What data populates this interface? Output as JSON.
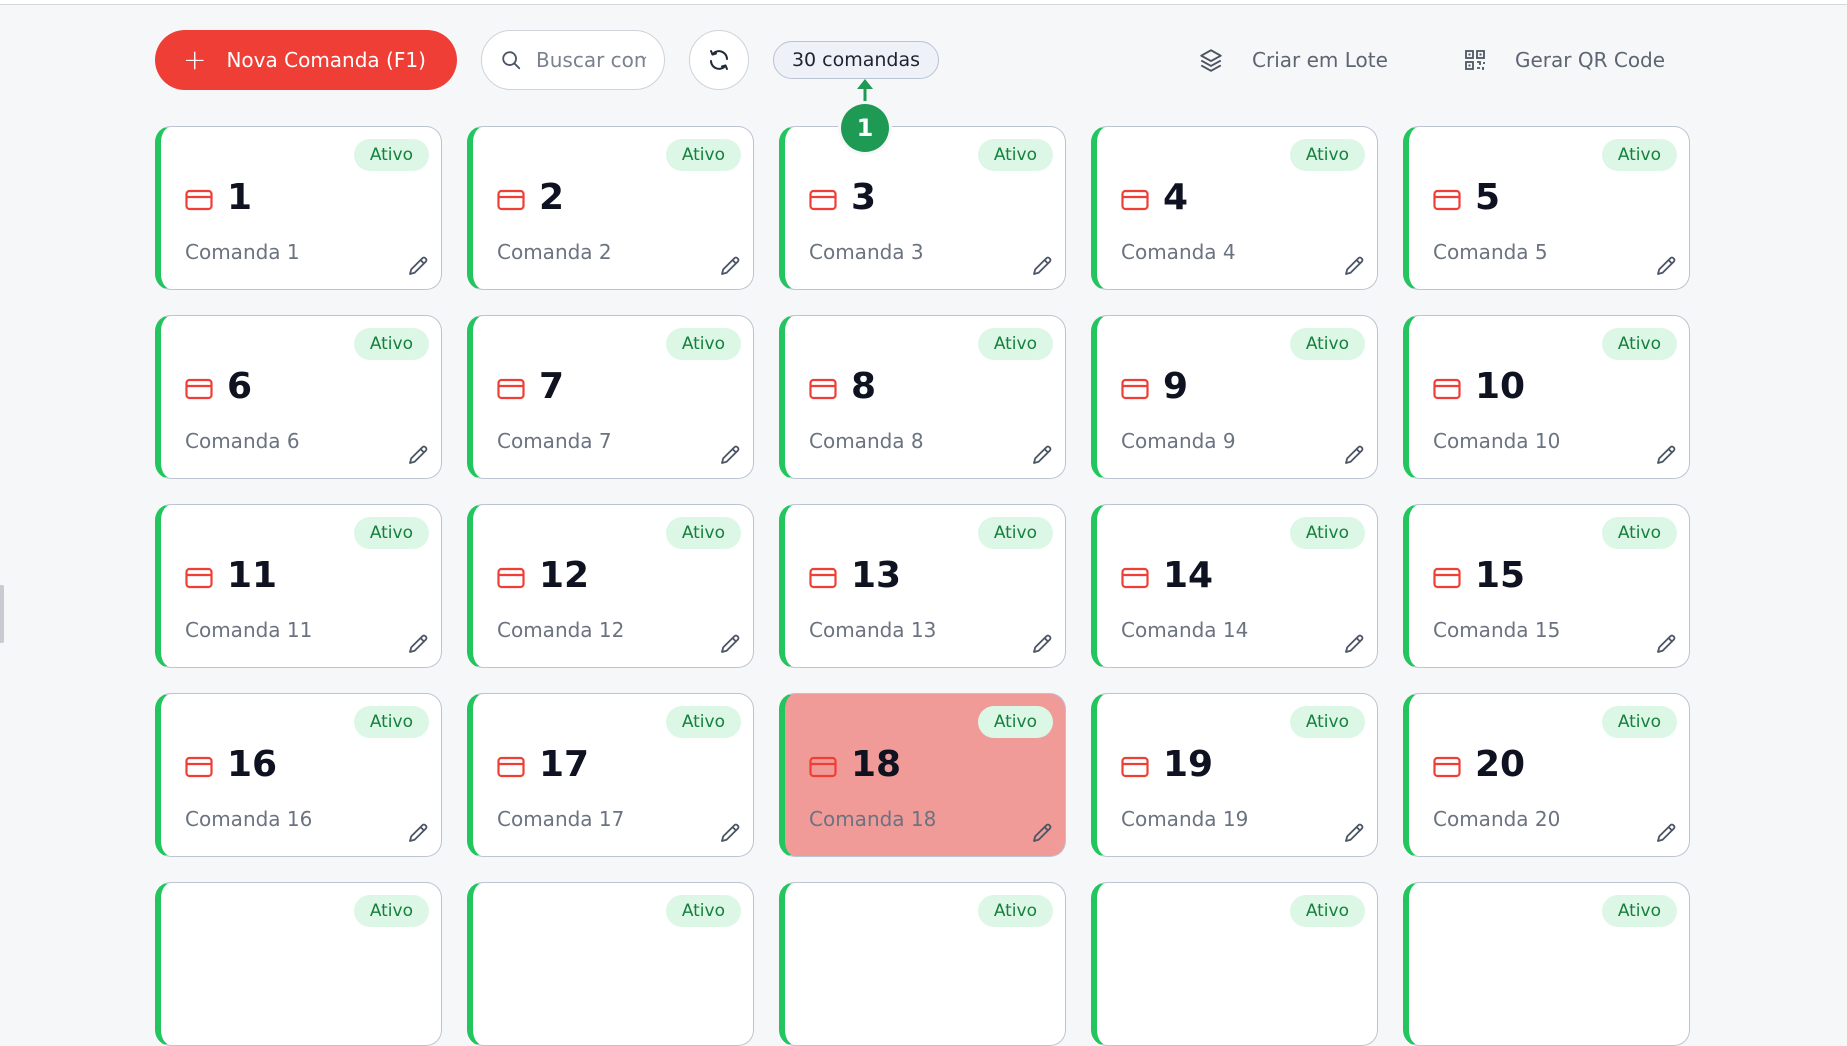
{
  "toolbar": {
    "new_label": "Nova Comanda (F1)",
    "search_placeholder": "Buscar comanda",
    "count_label": "30 comandas",
    "batch_label": "Criar em Lote",
    "qr_label": "Gerar QR Code"
  },
  "tour": {
    "step": "1"
  },
  "colors": {
    "accent": "#ef3e36",
    "active_border": "#22c55e",
    "selected_bg": "#f09b98",
    "tour": "#1f9a55"
  },
  "cards": [
    {
      "number": "1",
      "name": "Comanda 1",
      "status": "Ativo"
    },
    {
      "number": "2",
      "name": "Comanda 2",
      "status": "Ativo"
    },
    {
      "number": "3",
      "name": "Comanda 3",
      "status": "Ativo"
    },
    {
      "number": "4",
      "name": "Comanda 4",
      "status": "Ativo"
    },
    {
      "number": "5",
      "name": "Comanda 5",
      "status": "Ativo"
    },
    {
      "number": "6",
      "name": "Comanda 6",
      "status": "Ativo"
    },
    {
      "number": "7",
      "name": "Comanda 7",
      "status": "Ativo"
    },
    {
      "number": "8",
      "name": "Comanda 8",
      "status": "Ativo"
    },
    {
      "number": "9",
      "name": "Comanda 9",
      "status": "Ativo"
    },
    {
      "number": "10",
      "name": "Comanda 10",
      "status": "Ativo"
    },
    {
      "number": "11",
      "name": "Comanda 11",
      "status": "Ativo"
    },
    {
      "number": "12",
      "name": "Comanda 12",
      "status": "Ativo"
    },
    {
      "number": "13",
      "name": "Comanda 13",
      "status": "Ativo"
    },
    {
      "number": "14",
      "name": "Comanda 14",
      "status": "Ativo"
    },
    {
      "number": "15",
      "name": "Comanda 15",
      "status": "Ativo"
    },
    {
      "number": "16",
      "name": "Comanda 16",
      "status": "Ativo"
    },
    {
      "number": "17",
      "name": "Comanda 17",
      "status": "Ativo"
    },
    {
      "number": "18",
      "name": "Comanda 18",
      "status": "Ativo",
      "selected": true
    },
    {
      "number": "19",
      "name": "Comanda 19",
      "status": "Ativo"
    },
    {
      "number": "20",
      "name": "Comanda 20",
      "status": "Ativo"
    },
    {
      "number": "",
      "name": "",
      "status": "Ativo"
    },
    {
      "number": "",
      "name": "",
      "status": "Ativo"
    },
    {
      "number": "",
      "name": "",
      "status": "Ativo"
    },
    {
      "number": "",
      "name": "",
      "status": "Ativo"
    },
    {
      "number": "",
      "name": "",
      "status": "Ativo"
    }
  ]
}
